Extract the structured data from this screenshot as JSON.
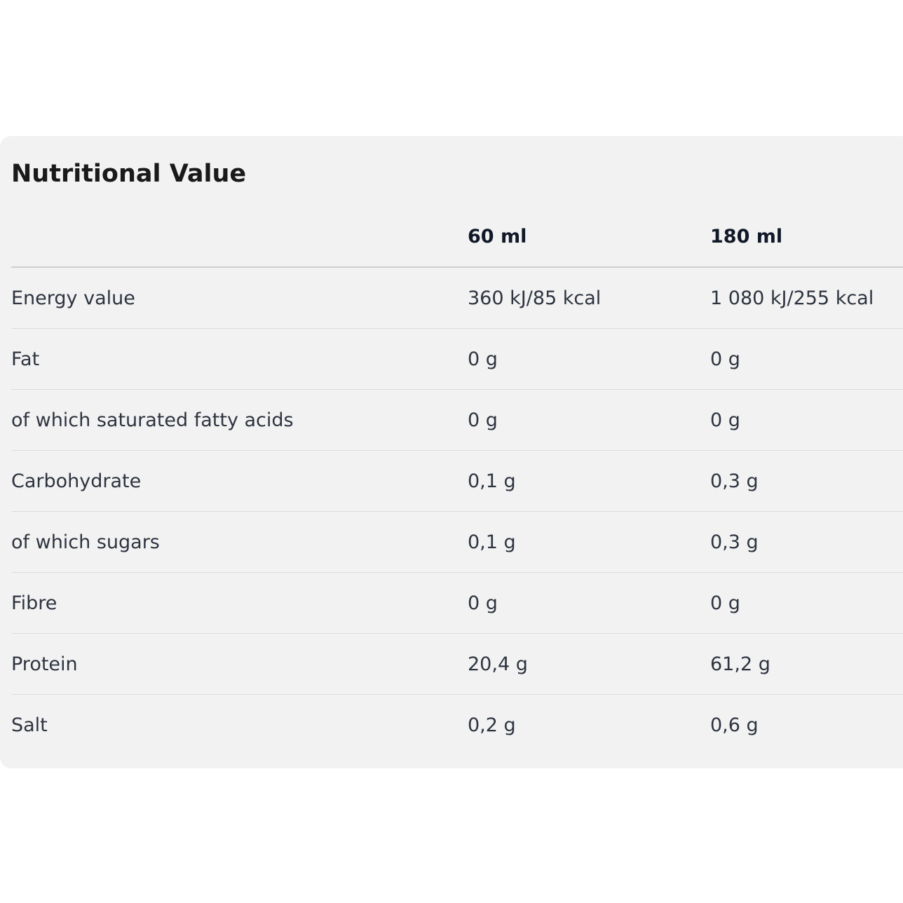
{
  "title": "Nutritional Value",
  "table": {
    "columns": [
      "",
      "60 ml",
      "180 ml"
    ],
    "rows": [
      [
        "Energy value",
        "360 kJ/85 kcal",
        "1 080 kJ/255 kcal"
      ],
      [
        "Fat",
        "0 g",
        "0 g"
      ],
      [
        "of which saturated fatty acids",
        "0 g",
        "0 g"
      ],
      [
        "Carbohydrate",
        "0,1 g",
        "0,3 g"
      ],
      [
        "of which sugars",
        "0,1 g",
        "0,3 g"
      ],
      [
        "Fibre",
        "0 g",
        "0 g"
      ],
      [
        "Protein",
        "20,4 g",
        "61,2 g"
      ],
      [
        "Salt",
        "0,2 g",
        "0,6 g"
      ]
    ]
  }
}
